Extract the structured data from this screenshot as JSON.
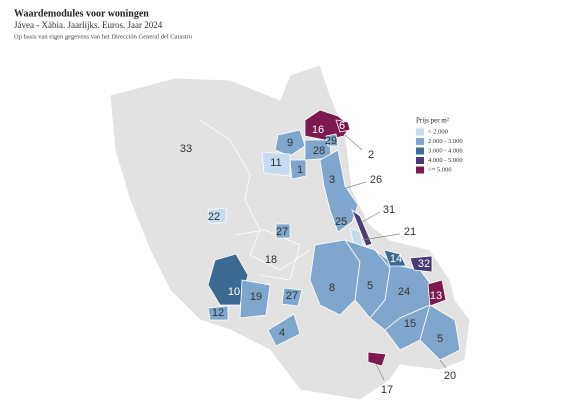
{
  "header": {
    "title": "Waardemodules voor woningen",
    "subtitle": "Jávea - Xàbia. Jaarlijks. Euros. Jaar 2024",
    "source": "Op basis van eigen gegevens van het Dirección General del Catastro"
  },
  "legend": {
    "title": "Prijs per m²",
    "items": [
      {
        "label": "< 2.000",
        "color": "#c6dbef"
      },
      {
        "label": "2.000 - 3.000",
        "color": "#7fa6cc"
      },
      {
        "label": "3.000 - 4.000",
        "color": "#3b6b93"
      },
      {
        "label": "4.000 - 5.000",
        "color": "#4b3b73"
      },
      {
        "label": ">= 5.000",
        "color": "#7c1a50"
      }
    ]
  },
  "zones": [
    {
      "label": "33",
      "color": "#e2e2e2"
    },
    {
      "label": "16",
      "color": "#7c1a50"
    },
    {
      "label": "6",
      "color": "#7c1a50"
    },
    {
      "label": "9",
      "color": "#7fa6cc"
    },
    {
      "label": "28",
      "color": "#7fa6cc"
    },
    {
      "label": "29",
      "color": "#7fa6cc"
    },
    {
      "label": "11",
      "color": "#c6dbef"
    },
    {
      "label": "1",
      "color": "#7fa6cc"
    },
    {
      "label": "2",
      "color": "#7fa6cc"
    },
    {
      "label": "3",
      "color": "#7fa6cc"
    },
    {
      "label": "26",
      "color": "#7fa6cc"
    },
    {
      "label": "25",
      "color": "#7fa6cc"
    },
    {
      "label": "31",
      "color": "#4b3b73"
    },
    {
      "label": "21",
      "color": "#c6dbef"
    },
    {
      "label": "22",
      "color": "#c6dbef"
    },
    {
      "label": "27",
      "color": "#7fa6cc"
    },
    {
      "label": "18",
      "color": "#e2e2e2"
    },
    {
      "label": "8",
      "color": "#7fa6cc"
    },
    {
      "label": "5",
      "color": "#7fa6cc"
    },
    {
      "label": "24",
      "color": "#7fa6cc"
    },
    {
      "label": "14",
      "color": "#3b6b93"
    },
    {
      "label": "32",
      "color": "#4b3b73"
    },
    {
      "label": "13",
      "color": "#7c1a50"
    },
    {
      "label": "15",
      "color": "#7fa6cc"
    },
    {
      "label": "5",
      "color": "#7fa6cc"
    },
    {
      "label": "10",
      "color": "#3b6b93"
    },
    {
      "label": "19",
      "color": "#7fa6cc"
    },
    {
      "label": "27",
      "color": "#7fa6cc"
    },
    {
      "label": "12",
      "color": "#7fa6cc"
    },
    {
      "label": "4",
      "color": "#7fa6cc"
    },
    {
      "label": "17",
      "color": "#7c1a50"
    },
    {
      "label": "20",
      "color": "#7fa6cc"
    }
  ]
}
